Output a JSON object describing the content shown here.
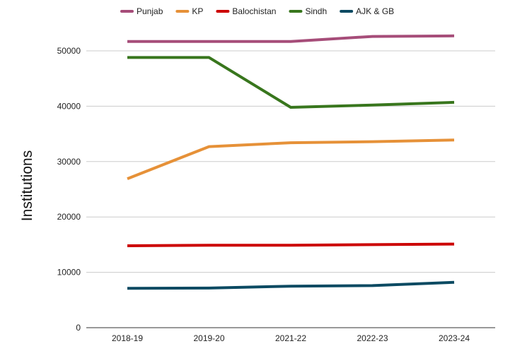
{
  "chart_data": {
    "type": "line",
    "title": "",
    "xlabel": "",
    "ylabel": "Institutions",
    "categories": [
      "2018-19",
      "2019-20",
      "2021-22",
      "2022-23",
      "2023-24"
    ],
    "ylim": [
      0,
      55000
    ],
    "yticks": [
      0,
      10000,
      20000,
      30000,
      40000,
      50000
    ],
    "grid": true,
    "legend_position": "top",
    "series": [
      {
        "name": "Punjab",
        "color": "#a64d79",
        "values": [
          51700,
          51700,
          51700,
          52600,
          52700
        ]
      },
      {
        "name": "KP",
        "color": "#e69138",
        "values": [
          26900,
          32700,
          33400,
          33600,
          33900
        ]
      },
      {
        "name": "Balochistan",
        "color": "#cc0000",
        "values": [
          14800,
          14900,
          14900,
          15000,
          15100
        ]
      },
      {
        "name": "Sindh",
        "color": "#38761d",
        "values": [
          48800,
          48800,
          39800,
          40200,
          40700
        ]
      },
      {
        "name": "AJK & GB",
        "color": "#0b4a62",
        "values": [
          7100,
          7150,
          7500,
          7600,
          8200
        ]
      }
    ]
  }
}
